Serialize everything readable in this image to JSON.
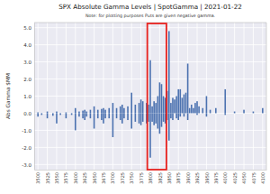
{
  "chart_data": {
    "type": "bar",
    "title": "SPX Absolute Gamma Levels | SpotGamma | 2021-01-22",
    "subtitle": "Note: for plotting purposes Puts are given negative gamma.",
    "y_label": "Abs Gamma $MM",
    "x": [
      3500,
      3525,
      3550,
      3575,
      3600,
      3610,
      3620,
      3625,
      3630,
      3640,
      3650,
      3660,
      3670,
      3675,
      3680,
      3690,
      3700,
      3710,
      3720,
      3725,
      3730,
      3740,
      3750,
      3760,
      3770,
      3775,
      3780,
      3790,
      3795,
      3800,
      3805,
      3810,
      3815,
      3820,
      3825,
      3830,
      3835,
      3840,
      3845,
      3850,
      3855,
      3860,
      3865,
      3870,
      3875,
      3880,
      3885,
      3890,
      3895,
      3900,
      3905,
      3910,
      3915,
      3920,
      3925,
      3930,
      3940,
      3950,
      3960,
      3975,
      4000,
      4025,
      4050,
      4075,
      4100,
      3500,
      3510,
      3525,
      3540,
      3550,
      3560,
      3575,
      3590,
      3600,
      3610,
      3620,
      3625,
      3630,
      3640,
      3650,
      3660,
      3670,
      3675,
      3680,
      3690,
      3700,
      3710,
      3720,
      3725,
      3730,
      3740,
      3750,
      3760,
      3770,
      3775,
      3780,
      3790,
      3795,
      3800,
      3805,
      3810,
      3815,
      3820,
      3825,
      3830,
      3835,
      3840,
      3845,
      3850,
      3855,
      3860,
      3870,
      3875,
      3880,
      3890,
      3900,
      3925,
      3950,
      4000
    ],
    "values": [
      0.05,
      0.1,
      0.1,
      0.05,
      0.3,
      0.1,
      0.15,
      0.2,
      0.1,
      0.2,
      0.4,
      0.2,
      0.25,
      0.3,
      0.2,
      0.3,
      0.6,
      0.3,
      0.4,
      0.5,
      0.3,
      0.4,
      1.2,
      0.5,
      0.6,
      0.8,
      0.7,
      0.6,
      0.5,
      3.1,
      0.4,
      0.7,
      0.6,
      1.0,
      1.8,
      1.7,
      1.0,
      0.9,
      1.3,
      4.8,
      0.6,
      0.9,
      0.8,
      1.0,
      1.4,
      1.4,
      0.9,
      1.1,
      1.2,
      2.9,
      0.3,
      0.5,
      0.3,
      0.6,
      0.7,
      0.4,
      0.3,
      1.0,
      0.2,
      0.3,
      1.4,
      0.1,
      0.2,
      0.1,
      0.3,
      -0.2,
      -0.1,
      -0.3,
      -0.15,
      -0.6,
      -0.1,
      -0.3,
      -0.1,
      -1.0,
      -0.2,
      -0.3,
      -0.4,
      -0.2,
      -0.3,
      -0.9,
      -0.3,
      -0.4,
      -0.6,
      -0.3,
      -0.3,
      -1.4,
      -0.3,
      -0.4,
      -0.6,
      -0.3,
      -0.4,
      -0.9,
      -0.5,
      -0.6,
      -0.7,
      -0.5,
      -0.6,
      -0.5,
      -2.6,
      -0.5,
      -0.7,
      -0.6,
      -0.9,
      -1.2,
      -0.8,
      -0.5,
      -0.6,
      -0.4,
      -1.6,
      -0.3,
      -0.4,
      -0.3,
      -0.4,
      -0.2,
      -0.2,
      -0.4,
      -0.1,
      -0.2,
      -0.1
    ],
    "color": "#4c72b0",
    "xlim": [
      3490,
      4110
    ],
    "xticks": [
      3500,
      3525,
      3550,
      3575,
      3600,
      3625,
      3650,
      3675,
      3700,
      3725,
      3750,
      3775,
      3800,
      3825,
      3850,
      3875,
      3900,
      3925,
      3950,
      3975,
      4000,
      4025,
      4050,
      4075,
      4100
    ],
    "ylim": [
      -3.3,
      5.3
    ],
    "yticks": [
      {
        "value": -3,
        "label": "-3.0"
      },
      {
        "value": -2,
        "label": "-2.0"
      },
      {
        "value": -1,
        "label": "-1.0"
      },
      {
        "value": 0,
        "label": "0.0"
      },
      {
        "value": 1,
        "label": "1.0"
      },
      {
        "value": 2,
        "label": "2.0"
      },
      {
        "value": 3,
        "label": "3.0"
      },
      {
        "value": 4,
        "label": "4.0"
      },
      {
        "value": 5,
        "label": "5.0"
      }
    ],
    "grid": true,
    "highlight_range": [
      3792,
      3843
    ]
  }
}
